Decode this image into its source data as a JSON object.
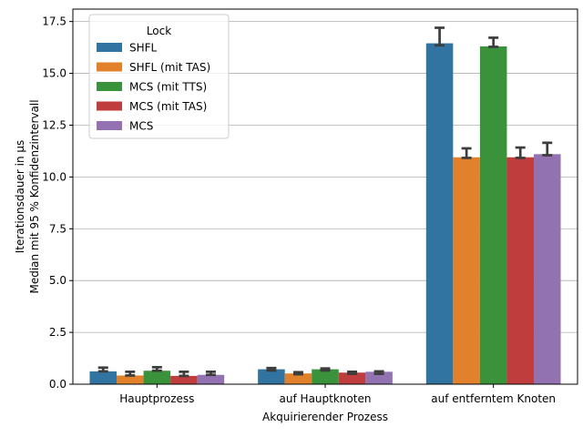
{
  "chart_data": {
    "type": "bar",
    "title": "",
    "xlabel": "Akquirierender Prozess",
    "ylabel_lines": [
      "Iterationsdauer in µs",
      "Median mit 95 % Konfidenzintervall"
    ],
    "categories": [
      "Hauptprozess",
      "auf Hauptknoten",
      "auf entferntem Knoten"
    ],
    "ylim": [
      0,
      18.1
    ],
    "yticks": [
      0.0,
      2.5,
      5.0,
      7.5,
      10.0,
      12.5,
      15.0,
      17.5
    ],
    "ytick_labels": [
      "0.0",
      "2.5",
      "5.0",
      "7.5",
      "10.0",
      "12.5",
      "15.0",
      "17.5"
    ],
    "grid": "horizontal",
    "legend": {
      "title": "Lock",
      "placement": "top-left"
    },
    "series": [
      {
        "name": "SHFL",
        "color": "#3274a1",
        "values": [
          0.62,
          0.72,
          16.45
        ],
        "ci_low": [
          0.62,
          0.66,
          16.35
        ],
        "ci_high": [
          0.8,
          0.78,
          17.2
        ]
      },
      {
        "name": "SHFL (mit TAS)",
        "color": "#e1812c",
        "values": [
          0.42,
          0.52,
          10.95
        ],
        "ci_low": [
          0.42,
          0.48,
          10.92
        ],
        "ci_high": [
          0.6,
          0.58,
          11.38
        ]
      },
      {
        "name": "MCS (mit TTS)",
        "color": "#3a923a",
        "values": [
          0.65,
          0.72,
          16.3
        ],
        "ci_low": [
          0.65,
          0.66,
          16.28
        ],
        "ci_high": [
          0.82,
          0.76,
          16.72
        ]
      },
      {
        "name": "MCS (mit TAS)",
        "color": "#c03d3e",
        "values": [
          0.4,
          0.56,
          10.95
        ],
        "ci_low": [
          0.4,
          0.5,
          10.92
        ],
        "ci_high": [
          0.6,
          0.6,
          11.42
        ]
      },
      {
        "name": "MCS",
        "color": "#9372b2",
        "values": [
          0.45,
          0.6,
          11.1
        ],
        "ci_low": [
          0.45,
          0.5,
          11.05
        ],
        "ci_high": [
          0.6,
          0.62,
          11.65
        ]
      }
    ]
  }
}
